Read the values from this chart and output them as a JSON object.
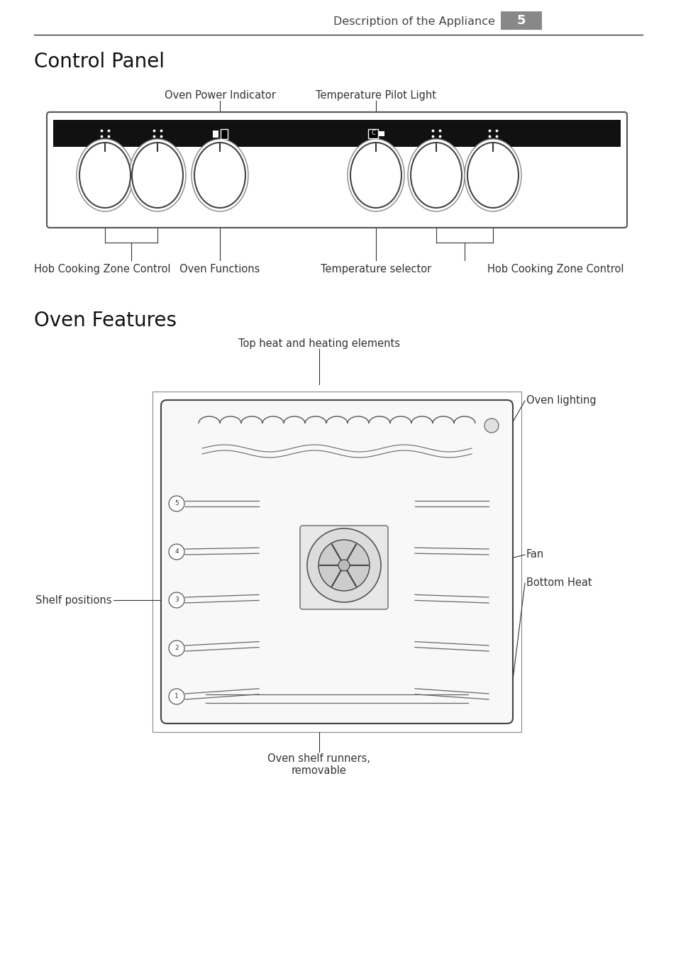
{
  "page_header": "Description of the Appliance",
  "page_number": "5",
  "section1_title": "Control Panel",
  "section2_title": "Oven Features",
  "bg_color": "#ffffff",
  "panel_bg": "#111111",
  "line_color": "#333333",
  "fig_w": 9.54,
  "fig_h": 13.52
}
